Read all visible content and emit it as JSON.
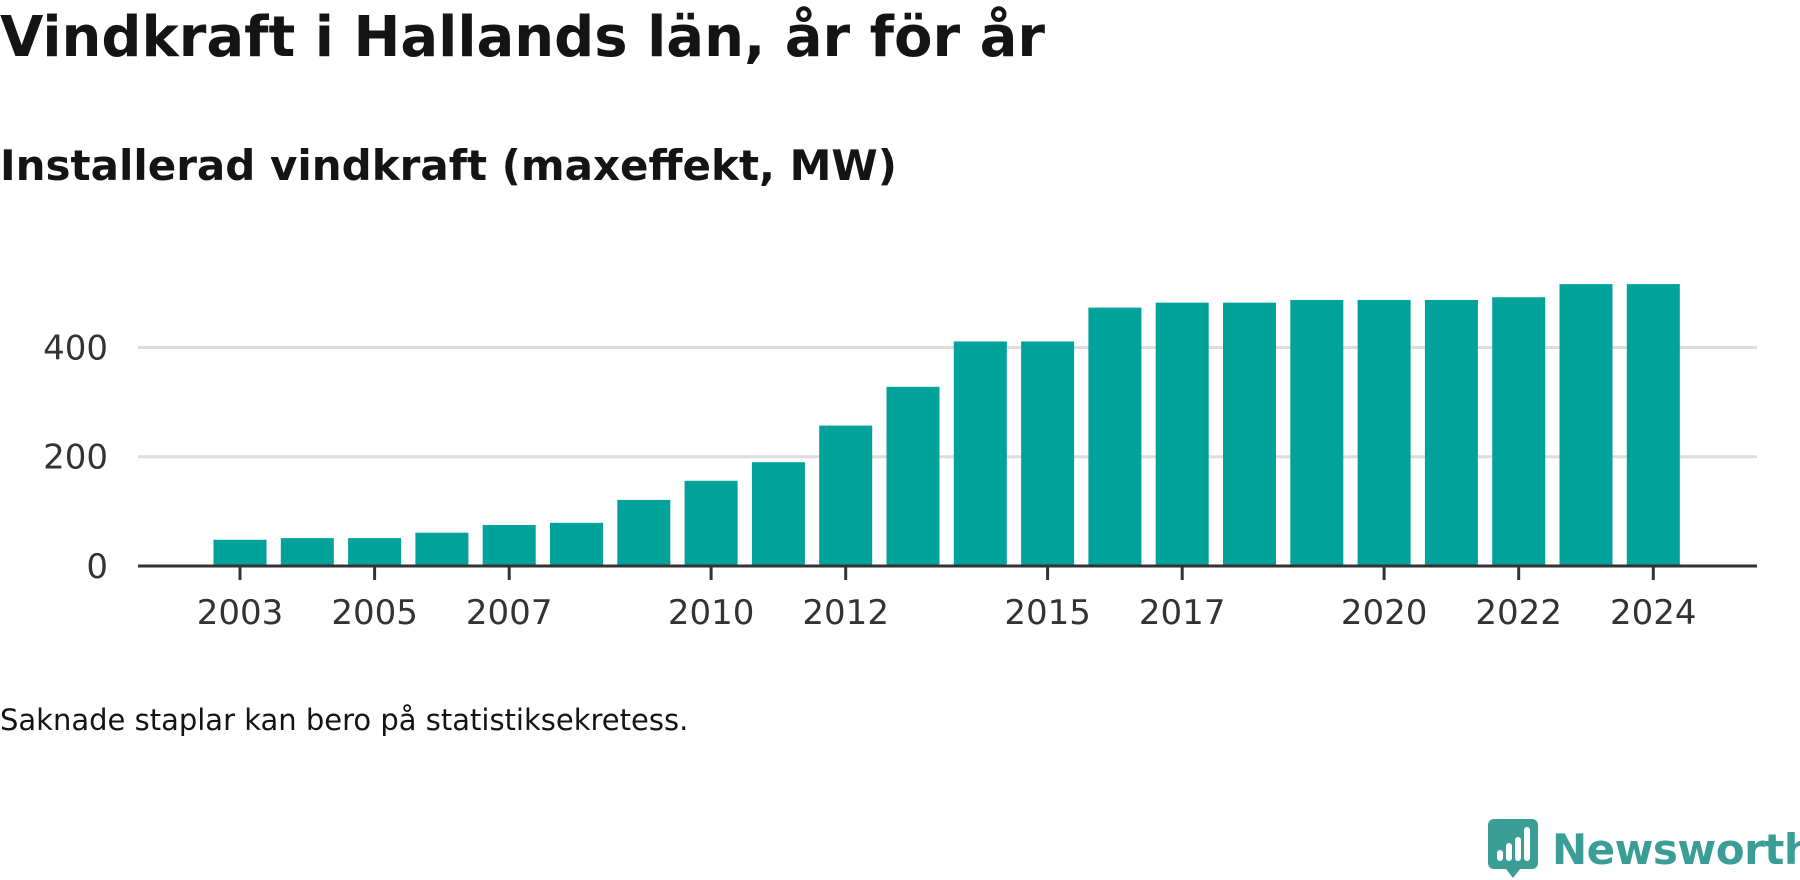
{
  "title": "Vindkraft i Hallands län, år för år",
  "subtitle": "Installerad vindkraft (maxeffekt, MW)",
  "note": "Saknade staplar kan bero på statistiksekretess.",
  "brand": {
    "name": "Newsworthy",
    "icon": "newsworthy-logo-icon",
    "color": "#3a9e97"
  },
  "chart_data": {
    "type": "bar",
    "categories": [
      "2003",
      "2004",
      "2005",
      "2006",
      "2007",
      "2008",
      "2009",
      "2010",
      "2011",
      "2012",
      "2013",
      "2014",
      "2015",
      "2016",
      "2017",
      "2018",
      "2019",
      "2020",
      "2021",
      "2022",
      "2023",
      "2024"
    ],
    "values": [
      48,
      51,
      51,
      61,
      75,
      79,
      121,
      156,
      190,
      257,
      328,
      411,
      411,
      473,
      482,
      482,
      487,
      487,
      487,
      492,
      516,
      516
    ],
    "x_tick_labels": [
      "2003",
      "2005",
      "2007",
      "2010",
      "2012",
      "2015",
      "2017",
      "2020",
      "2022",
      "2024"
    ],
    "y_ticks": [
      0,
      200,
      400
    ],
    "ylim": [
      0,
      540
    ],
    "xlabel": "",
    "ylabel": "",
    "grid": true,
    "legend": "none",
    "bar_color": "#00a29a"
  }
}
